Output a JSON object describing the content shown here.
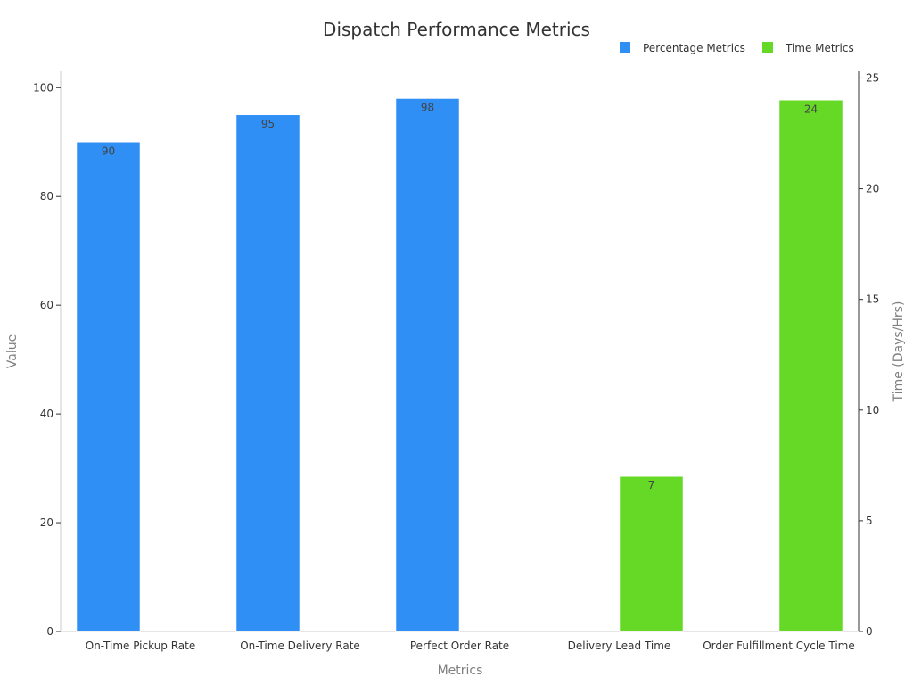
{
  "chart_data": {
    "type": "bar",
    "title": "Dispatch Performance Metrics",
    "xlabel": "Metrics",
    "ylabel": "Value",
    "y2label": "Time (Days/Hrs)",
    "ylim": [
      0,
      103
    ],
    "y2lim": [
      0,
      25.3
    ],
    "yticks": [
      0,
      20,
      40,
      60,
      80,
      100
    ],
    "y2ticks": [
      0,
      5,
      10,
      15,
      20,
      25
    ],
    "grid": false,
    "legend_position": "top-right",
    "categories": [
      "On-Time Pickup Rate",
      "On-Time Delivery Rate",
      "Perfect Order Rate",
      "Delivery Lead Time",
      "Order Fulfillment Cycle Time"
    ],
    "series": [
      {
        "name": "Percentage Metrics",
        "axis": "left",
        "color": "#2f8ff5",
        "values": [
          90,
          95,
          98,
          null,
          null
        ]
      },
      {
        "name": "Time Metrics",
        "axis": "right",
        "color": "#66d926",
        "values": [
          null,
          null,
          null,
          7,
          24
        ]
      }
    ]
  }
}
